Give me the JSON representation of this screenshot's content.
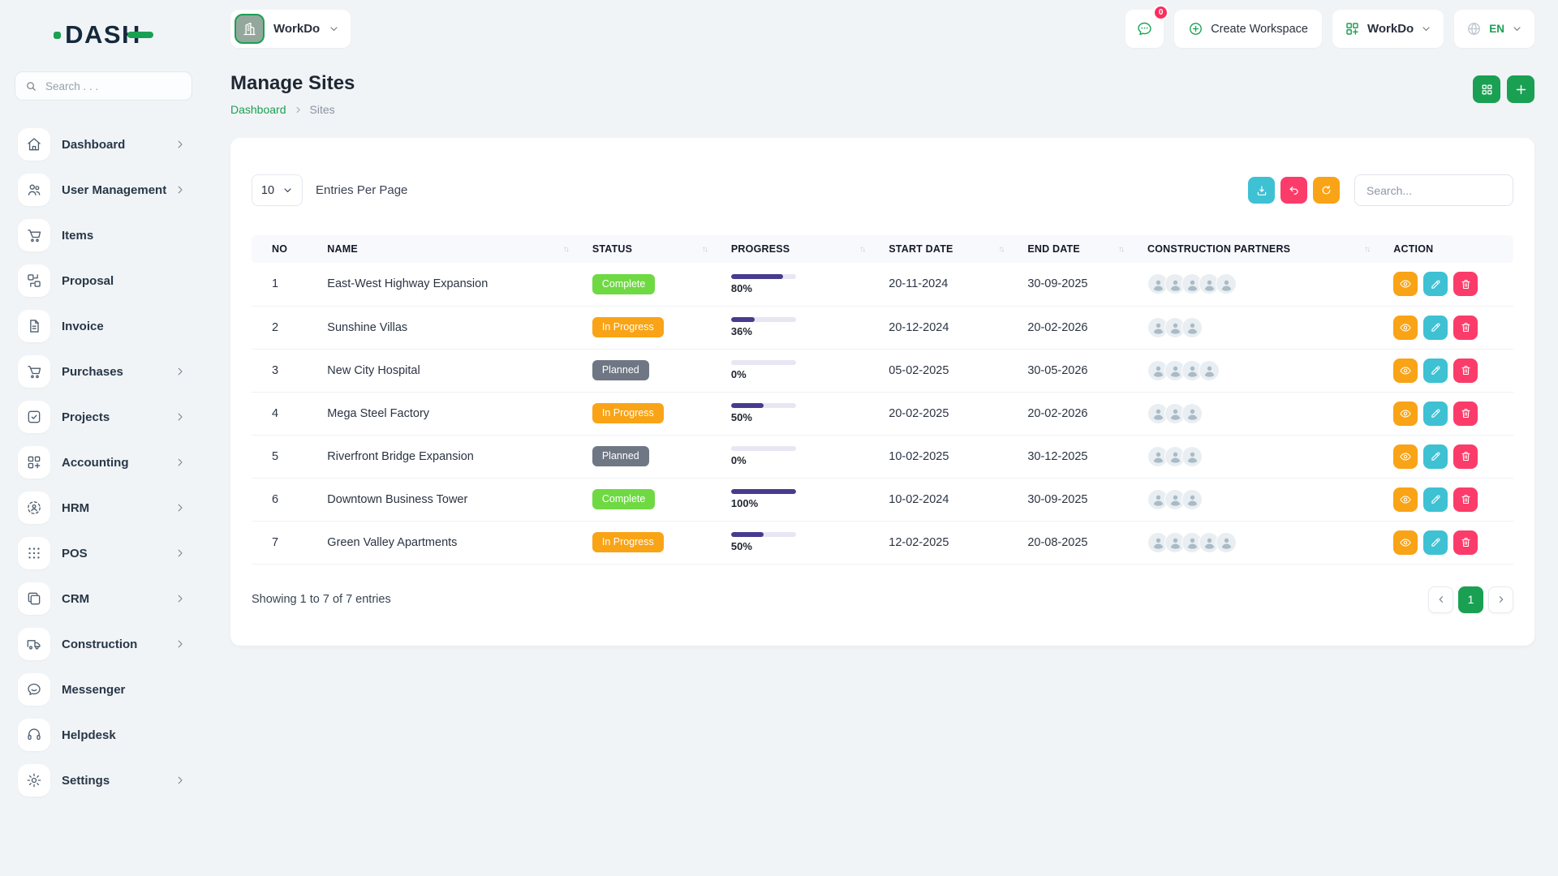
{
  "brand": {
    "name": "DASH"
  },
  "sidebar": {
    "search_placeholder": "Search . . .",
    "items": [
      {
        "label": "Dashboard",
        "icon": "home",
        "chevron": true
      },
      {
        "label": "User Management",
        "icon": "users",
        "chevron": true
      },
      {
        "label": "Items",
        "icon": "cart",
        "chevron": false
      },
      {
        "label": "Proposal",
        "icon": "transfer",
        "chevron": false
      },
      {
        "label": "Invoice",
        "icon": "invoice",
        "chevron": false
      },
      {
        "label": "Purchases",
        "icon": "cart",
        "chevron": true
      },
      {
        "label": "Projects",
        "icon": "check-square",
        "chevron": true
      },
      {
        "label": "Accounting",
        "icon": "accounting",
        "chevron": true
      },
      {
        "label": "HRM",
        "icon": "hrm",
        "chevron": true
      },
      {
        "label": "POS",
        "icon": "grid-dots",
        "chevron": true
      },
      {
        "label": "CRM",
        "icon": "crm",
        "chevron": true
      },
      {
        "label": "Construction",
        "icon": "truck",
        "chevron": true
      },
      {
        "label": "Messenger",
        "icon": "chat",
        "chevron": false
      },
      {
        "label": "Helpdesk",
        "icon": "headset",
        "chevron": false
      },
      {
        "label": "Settings",
        "icon": "gear",
        "chevron": true
      }
    ]
  },
  "topbar": {
    "workspace_name": "WorkDo",
    "messages_badge": "0",
    "create_workspace_label": "Create Workspace",
    "app_switcher_label": "WorkDo",
    "language": "EN"
  },
  "page": {
    "title": "Manage Sites",
    "breadcrumb": {
      "items": [
        {
          "label": "Dashboard"
        },
        {
          "label": "Sites"
        }
      ]
    }
  },
  "controls": {
    "entries_value": "10",
    "entries_label": "Entries Per Page",
    "search_placeholder": "Search..."
  },
  "table": {
    "columns": [
      {
        "label": "NO",
        "sortable": false
      },
      {
        "label": "NAME",
        "sortable": true
      },
      {
        "label": "STATUS",
        "sortable": true
      },
      {
        "label": "PROGRESS",
        "sortable": true
      },
      {
        "label": "START DATE",
        "sortable": true
      },
      {
        "label": "END DATE",
        "sortable": true
      },
      {
        "label": "CONSTRUCTION PARTNERS",
        "sortable": true
      },
      {
        "label": "ACTION",
        "sortable": false
      }
    ],
    "status_styles": {
      "Complete": "badge-complete",
      "In Progress": "badge-progress",
      "Planned": "badge-planned"
    },
    "rows": [
      {
        "no": "1",
        "name": "East-West Highway Expansion",
        "status": "Complete",
        "progress": 80,
        "start": "20-11-2024",
        "end": "30-09-2025",
        "partners": 5
      },
      {
        "no": "2",
        "name": "Sunshine Villas",
        "status": "In Progress",
        "progress": 36,
        "start": "20-12-2024",
        "end": "20-02-2026",
        "partners": 3
      },
      {
        "no": "3",
        "name": "New City Hospital",
        "status": "Planned",
        "progress": 0,
        "start": "05-02-2025",
        "end": "30-05-2026",
        "partners": 4
      },
      {
        "no": "4",
        "name": "Mega Steel Factory",
        "status": "In Progress",
        "progress": 50,
        "start": "20-02-2025",
        "end": "20-02-2026",
        "partners": 3
      },
      {
        "no": "5",
        "name": "Riverfront Bridge Expansion",
        "status": "Planned",
        "progress": 0,
        "start": "10-02-2025",
        "end": "30-12-2025",
        "partners": 3
      },
      {
        "no": "6",
        "name": "Downtown Business Tower",
        "status": "Complete",
        "progress": 100,
        "start": "10-02-2024",
        "end": "30-09-2025",
        "partners": 3
      },
      {
        "no": "7",
        "name": "Green Valley Apartments",
        "status": "In Progress",
        "progress": 50,
        "start": "12-02-2025",
        "end": "20-08-2025",
        "partners": 5
      }
    ]
  },
  "footer": {
    "summary": "Showing 1 to 7 of 7 entries",
    "page": "1"
  },
  "colors": {
    "primary": "#1aa053",
    "badge_complete": "#6fd943",
    "badge_in_progress": "#f9a316",
    "badge_planned": "#6f7784",
    "progress_fill": "#473b8f",
    "action_view": "#f9a316",
    "action_edit": "#3ec1d3",
    "action_delete": "#fb3c6a",
    "notification_badge": "#fb2e5f"
  }
}
